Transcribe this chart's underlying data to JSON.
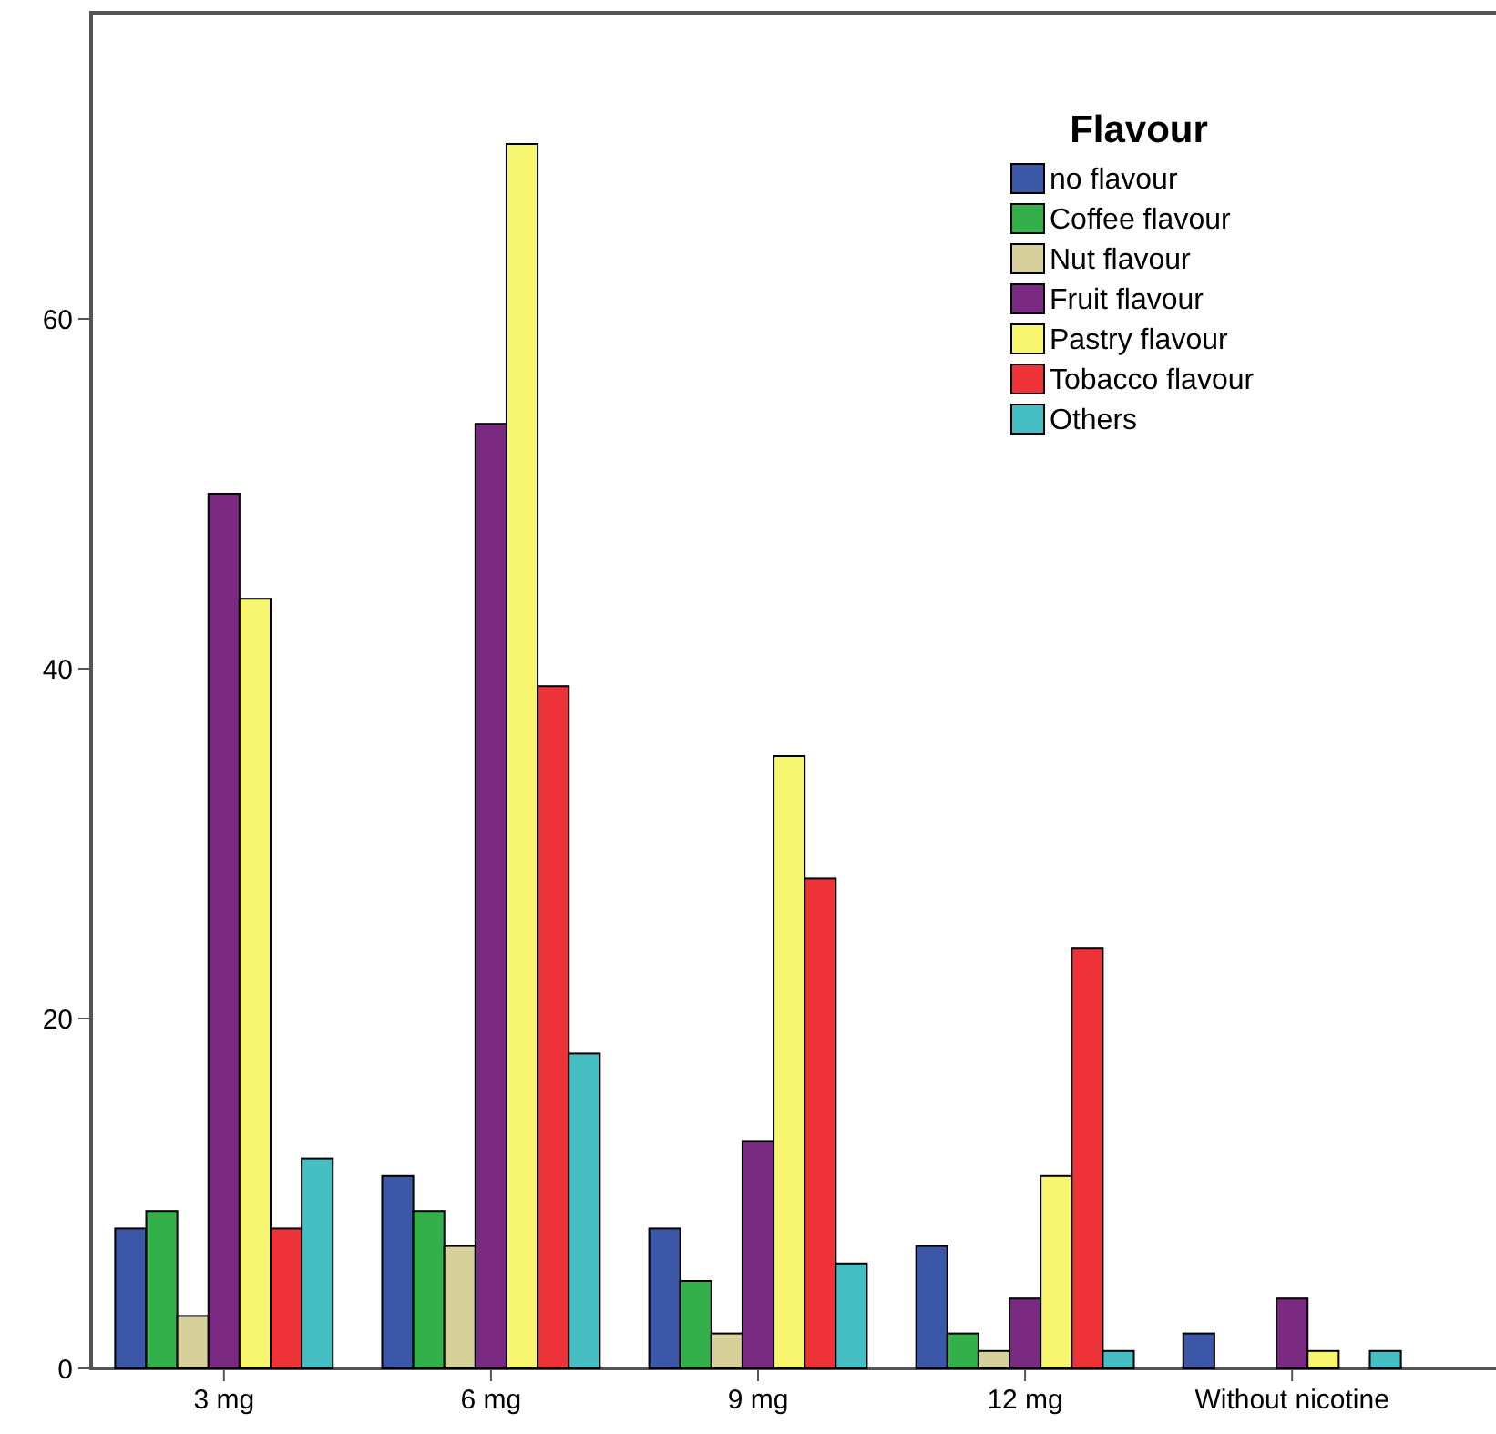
{
  "chart_data": {
    "type": "bar",
    "legend_title": "Flavour",
    "categories": [
      "3 mg",
      "6 mg",
      "9 mg",
      "12 mg",
      "Without nicotine"
    ],
    "series": [
      {
        "name": "no flavour",
        "color": "#3c56a8",
        "values": [
          8,
          11,
          8,
          7,
          2
        ]
      },
      {
        "name": "Coffee flavour",
        "color": "#33b04a",
        "values": [
          9,
          9,
          5,
          2,
          0
        ]
      },
      {
        "name": "Nut flavour",
        "color": "#d6d09a",
        "values": [
          3,
          7,
          2,
          1,
          0
        ]
      },
      {
        "name": "Fruit flavour",
        "color": "#7b2a82",
        "values": [
          50,
          54,
          13,
          4,
          4
        ]
      },
      {
        "name": "Pastry flavour",
        "color": "#f8f56e",
        "values": [
          44,
          70,
          35,
          11,
          1
        ]
      },
      {
        "name": "Tobacco flavour",
        "color": "#ee3338",
        "values": [
          8,
          39,
          28,
          24,
          0
        ]
      },
      {
        "name": "Others",
        "color": "#45bfc4",
        "values": [
          12,
          18,
          6,
          1,
          1
        ]
      }
    ],
    "ylim": [
      0,
      77.5
    ],
    "yticks": [
      0,
      20,
      40,
      60
    ],
    "grid": false,
    "legend": "top right"
  }
}
